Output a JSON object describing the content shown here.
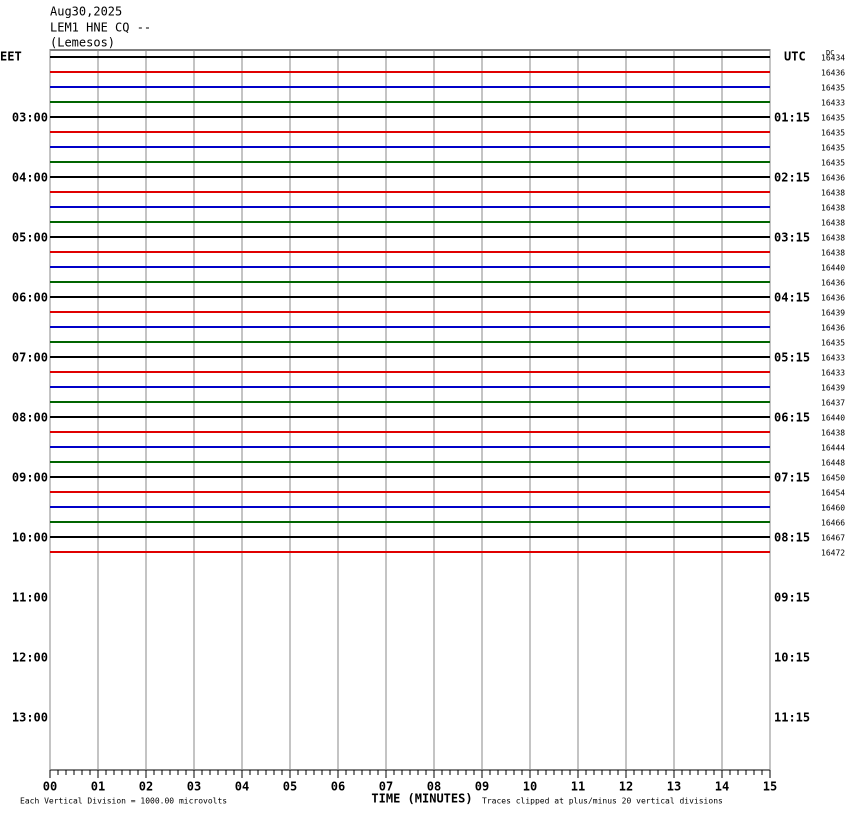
{
  "header": {
    "date": "Aug30,2025",
    "station": "LEM1 HNE CQ --",
    "location": "(Lemesos)"
  },
  "left_zone": "EET",
  "right_zone": "UTC",
  "dc_label": "DC",
  "left_labels": [
    "03:00",
    "04:00",
    "05:00",
    "06:00",
    "07:00",
    "08:00",
    "09:00",
    "10:00",
    "11:00",
    "12:00",
    "13:00"
  ],
  "right_labels": [
    "01:15",
    "02:15",
    "03:15",
    "04:15",
    "05:15",
    "06:15",
    "07:15",
    "08:15",
    "09:15",
    "10:15",
    "11:15"
  ],
  "trace_colors": [
    "#000000",
    "#e00000",
    "#0000c8",
    "#006400"
  ],
  "dc_values": [
    16434,
    16436,
    16435,
    16433,
    16435,
    16435,
    16435,
    16435,
    16436,
    16438,
    16438,
    16438,
    16438,
    16438,
    16440,
    16436,
    16436,
    16439,
    16436,
    16435,
    16433,
    16433,
    16439,
    16437,
    16440,
    16438,
    16444,
    16448,
    16450,
    16454,
    16460,
    16466,
    16467,
    16472
  ],
  "xticks": [
    "00",
    "01",
    "02",
    "03",
    "04",
    "05",
    "06",
    "07",
    "08",
    "09",
    "10",
    "11",
    "12",
    "13",
    "14",
    "15"
  ],
  "footer": {
    "scale": "Each Vertical Division = 1000.00 microvolts",
    "x_label": "TIME (MINUTES)",
    "clip": "Traces clipped at plus/minus 20 vertical divisions"
  }
}
